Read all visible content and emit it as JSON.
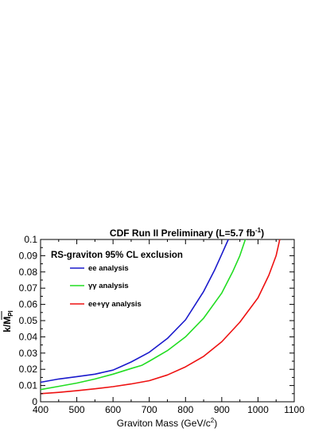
{
  "chart_data": {
    "type": "line",
    "title": "CDF Run II Preliminary (L=5.7 fb",
    "title_sup": "-1",
    "title_end": ")",
    "annotation": "RS-graviton 95% CL exclusion",
    "xlabel": "Graviton Mass (GeV/c",
    "xlabel_sup": "2",
    "xlabel_end": ")",
    "ylabel": "k/M",
    "ylabel_sub": "Pl",
    "xlim": [
      400,
      1100
    ],
    "ylim": [
      0,
      0.1
    ],
    "xticks": [
      "400",
      "500",
      "600",
      "700",
      "800",
      "900",
      "1000",
      "1100"
    ],
    "yticks": [
      "0",
      "0.01",
      "0.02",
      "0.03",
      "0.04",
      "0.05",
      "0.06",
      "0.07",
      "0.08",
      "0.09",
      "0.1"
    ],
    "legend_placement": "top-left",
    "grid": false,
    "series": [
      {
        "name": "ee analysis",
        "color": "#1a1acc",
        "x": [
          400,
          450,
          500,
          550,
          600,
          620,
          650,
          700,
          750,
          800,
          850,
          880,
          900,
          918
        ],
        "y": [
          0.012,
          0.014,
          0.0155,
          0.017,
          0.0195,
          0.0215,
          0.0245,
          0.0305,
          0.039,
          0.0505,
          0.068,
          0.081,
          0.091,
          0.1
        ]
      },
      {
        "name": "γγ analysis",
        "color": "#22dd22",
        "x": [
          400,
          450,
          500,
          550,
          600,
          650,
          680,
          700,
          750,
          800,
          850,
          900,
          930,
          950,
          965
        ],
        "y": [
          0.0075,
          0.0095,
          0.0115,
          0.014,
          0.017,
          0.0205,
          0.0225,
          0.025,
          0.0315,
          0.04,
          0.0515,
          0.067,
          0.08,
          0.09,
          0.1
        ]
      },
      {
        "name": "ee+γγ analysis",
        "color": "#ee1111",
        "x": [
          400,
          450,
          500,
          550,
          600,
          650,
          700,
          750,
          800,
          850,
          900,
          950,
          1000,
          1030,
          1050,
          1060
        ],
        "y": [
          0.005,
          0.0058,
          0.0068,
          0.008,
          0.0093,
          0.011,
          0.013,
          0.0165,
          0.0215,
          0.028,
          0.037,
          0.049,
          0.064,
          0.078,
          0.09,
          0.1
        ]
      }
    ]
  }
}
